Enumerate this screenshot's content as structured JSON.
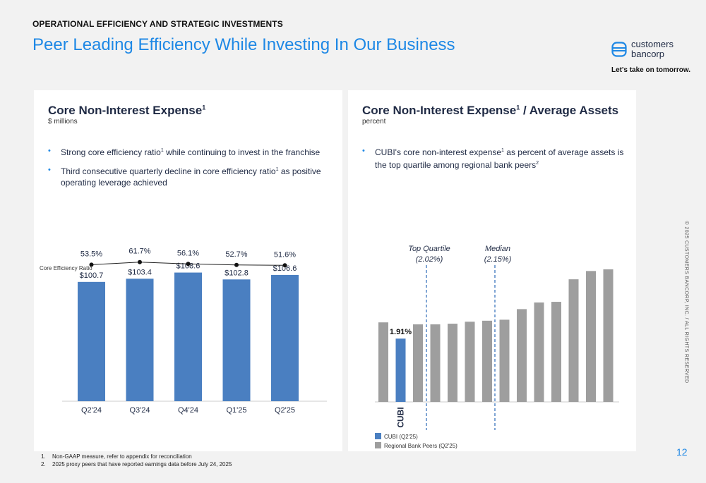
{
  "header": {
    "eyebrow": "OPERATIONAL EFFICIENCY AND STRATEGIC INVESTMENTS",
    "title": "Peer Leading Efficiency While Investing In Our Business"
  },
  "brand": {
    "logo_line1": "customers",
    "logo_line2": "bancorp",
    "tagline": "Let's take on tomorrow.",
    "accent": "#1e88e5"
  },
  "side_note": "© 2025 CUSTOMERS BANCORP, INC. / ALL RIGHTS RESERVED",
  "page_number": "12",
  "left_panel": {
    "title": "Core Non-Interest Expense",
    "title_sup": "1",
    "subtitle": "$ millions",
    "bullets": [
      {
        "pre": "Strong core efficiency ratio",
        "sup": "1",
        "post": " while continuing to invest in the franchise"
      },
      {
        "pre": "Third consecutive quarterly decline in core efficiency ratio",
        "sup": "1",
        "post": " as positive operating leverage achieved"
      }
    ]
  },
  "right_panel": {
    "title": "Core Non-Interest Expense",
    "title_sup": "1",
    "title_post": " / Average Assets",
    "subtitle": "percent",
    "bullets": [
      {
        "pre": "CUBI's core non-interest expense",
        "sup": "1",
        "post": " as percent of average assets is the top quartile among regional bank peers",
        "sup2": "2"
      }
    ]
  },
  "chart_data": [
    {
      "type": "bar",
      "categories": [
        "Q2'24",
        "Q3'24",
        "Q4'24",
        "Q1'25",
        "Q2'25"
      ],
      "values": [
        100.7,
        103.4,
        108.6,
        102.8,
        106.6
      ],
      "value_labels": [
        "$100.7",
        "$103.4",
        "$108.6",
        "$102.8",
        "$106.6"
      ],
      "ylim": [
        0,
        120
      ],
      "bar_color": "#4a7fc1",
      "line_series": {
        "name": "Core Efficiency Ratio",
        "values": [
          53.5,
          61.7,
          56.1,
          52.7,
          51.6
        ],
        "labels": [
          "53.5%",
          "61.7%",
          "56.1%",
          "52.7%",
          "51.6%"
        ]
      }
    },
    {
      "type": "bar",
      "values": [
        2.4,
        1.91,
        2.34,
        2.34,
        2.36,
        2.42,
        2.45,
        2.48,
        2.8,
        3.0,
        3.02,
        3.7,
        3.95,
        4.0
      ],
      "highlight_index": 1,
      "highlight_label": "1.91%",
      "highlight_category": "CUBI",
      "ylim": [
        0,
        4.2
      ],
      "colors": {
        "cubi": "#4a7fc1",
        "peer": "#9e9e9e",
        "reference": "#4a7fc1"
      },
      "reference_lines": [
        {
          "label": "Top Quartile",
          "value_label": "(2.02%)"
        },
        {
          "label": "Median",
          "value_label": "(2.15%)"
        }
      ],
      "legend": [
        {
          "label": "CUBI (Q2'25)",
          "color": "#4a7fc1"
        },
        {
          "label": "Regional Bank Peers (Q2'25)",
          "color": "#9e9e9e"
        }
      ]
    }
  ],
  "footnotes": [
    {
      "n": "1.",
      "text": "Non-GAAP measure, refer to appendix for reconciliation"
    },
    {
      "n": "2.",
      "text": "2025 proxy peers that have reported earnings data before July 24, 2025"
    }
  ]
}
